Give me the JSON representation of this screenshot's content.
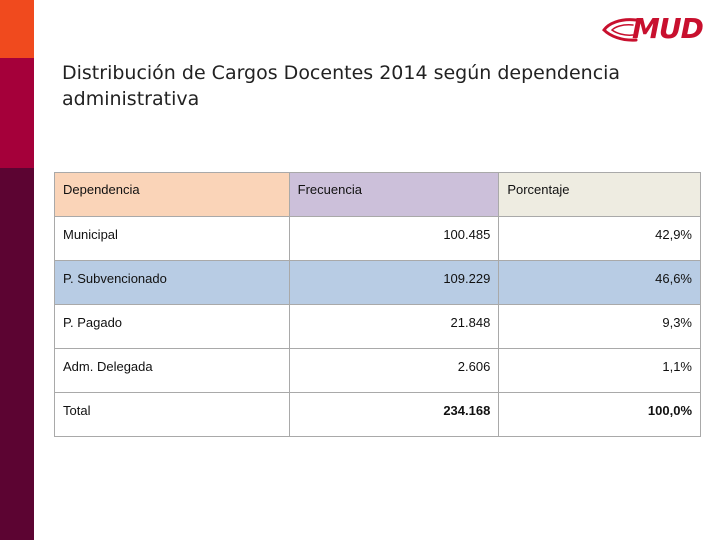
{
  "brand": {
    "logo_text": "MUD",
    "colors": {
      "accent": "#c8102e",
      "bar_top": "#f04a1e",
      "bar_mid": "#a5003a",
      "bar_bottom": "#5c0432"
    }
  },
  "slide": {
    "title": "Distribución de Cargos Docentes 2014 según dependencia administrativa"
  },
  "table": {
    "headers": {
      "dependencia": "Dependencia",
      "frecuencia": "Frecuencia",
      "porcentaje": "Porcentaje"
    },
    "rows": [
      {
        "dependencia": "Municipal",
        "frecuencia": "100.485",
        "porcentaje": "42,9%"
      },
      {
        "dependencia": "P. Subvencionado",
        "frecuencia": "109.229",
        "porcentaje": "46,6%"
      },
      {
        "dependencia": "P. Pagado",
        "frecuencia": "21.848",
        "porcentaje": "9,3%"
      },
      {
        "dependencia": "Adm. Delegada",
        "frecuencia": "2.606",
        "porcentaje": "1,1%"
      }
    ],
    "total": {
      "dependencia": "Total",
      "frecuencia": "234.168",
      "porcentaje": "100,0%"
    }
  }
}
